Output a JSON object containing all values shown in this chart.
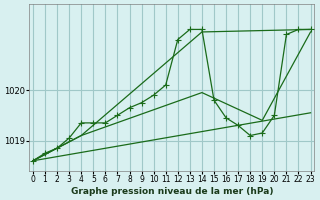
{
  "title": "Graphe pression niveau de la mer (hPa)",
  "background_color": "#d8f0f0",
  "grid_color": "#a0c8c8",
  "line_color": "#1a6b1a",
  "x_ticks": [
    0,
    1,
    2,
    3,
    4,
    5,
    6,
    7,
    8,
    9,
    10,
    11,
    12,
    13,
    14,
    15,
    16,
    17,
    18,
    19,
    20,
    21,
    22,
    23
  ],
  "y_ticks": [
    1019,
    1020
  ],
  "ylim": [
    1018.4,
    1021.7
  ],
  "xlim": [
    -0.3,
    23.3
  ],
  "series1_x": [
    0,
    1,
    2,
    3,
    4,
    5,
    6,
    7,
    8,
    9,
    10,
    11,
    12,
    13,
    14,
    15,
    16,
    17,
    18,
    19,
    20,
    21,
    22,
    23
  ],
  "series1_y": [
    1018.6,
    1018.75,
    1018.85,
    1019.05,
    1019.35,
    1019.35,
    1019.35,
    1019.5,
    1019.65,
    1019.75,
    1019.9,
    1020.1,
    1021.0,
    1021.2,
    1021.2,
    1019.8,
    1019.45,
    1019.3,
    1019.1,
    1019.15,
    1019.5,
    1021.1,
    1021.2,
    1021.2
  ],
  "series2_x": [
    0,
    4,
    14,
    23
  ],
  "series2_y": [
    1018.6,
    1019.1,
    1021.15,
    1021.2
  ],
  "series3_x": [
    0,
    4,
    14,
    19,
    23
  ],
  "series3_y": [
    1018.6,
    1019.1,
    1019.95,
    1019.4,
    1021.15
  ],
  "series4_x": [
    0,
    23
  ],
  "series4_y": [
    1018.6,
    1019.55
  ]
}
